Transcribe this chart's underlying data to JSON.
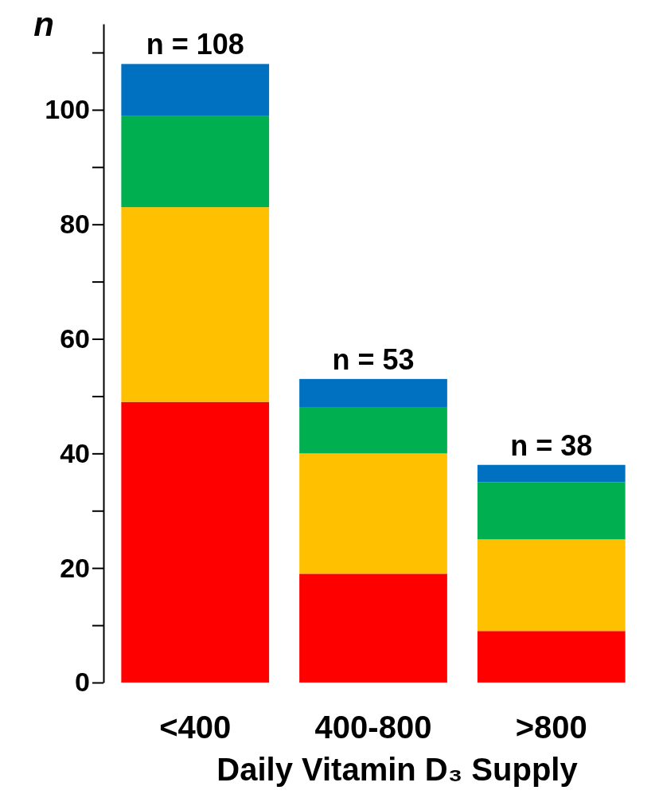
{
  "chart_data": {
    "type": "bar",
    "stacked": true,
    "xlabel": "Daily Vitamin D₃ Supply",
    "ylabel": "n",
    "categories": [
      "<400",
      "400-800",
      ">800"
    ],
    "series": [
      {
        "color": "#ff0000",
        "values": [
          49,
          19,
          9
        ]
      },
      {
        "color": "#ffc000",
        "values": [
          34,
          21,
          16
        ]
      },
      {
        "color": "#00b050",
        "values": [
          16,
          8,
          10
        ]
      },
      {
        "color": "#0070c0",
        "values": [
          9,
          5,
          3
        ]
      }
    ],
    "totals": [
      "n = 108",
      "n = 53",
      "n = 38"
    ],
    "ylim": [
      0,
      115
    ],
    "yticks": [
      0,
      {
        "value": 10,
        "label": null
      },
      20,
      {
        "value": 30,
        "label": null
      },
      40,
      {
        "value": 50,
        "label": null
      },
      60,
      {
        "value": 70,
        "label": null
      },
      80,
      {
        "value": 90,
        "label": null
      },
      100,
      {
        "value": 110,
        "label": null
      }
    ]
  }
}
